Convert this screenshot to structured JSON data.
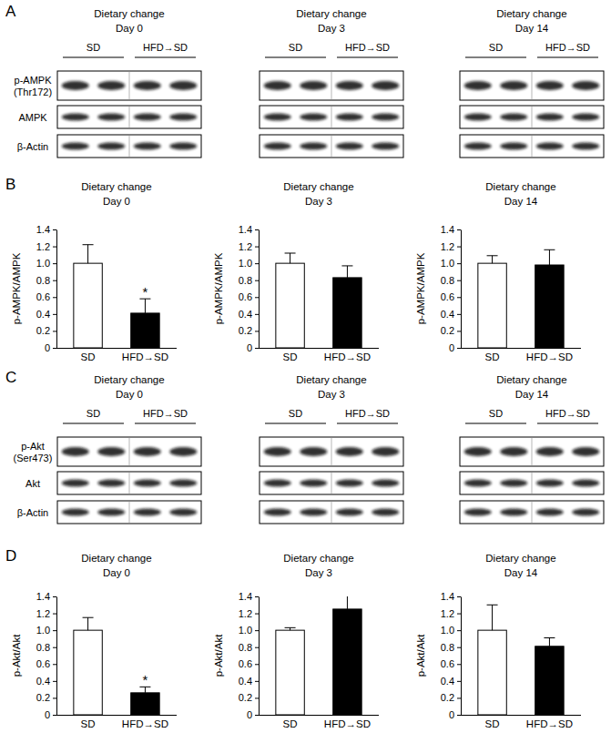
{
  "panel_letters": [
    "A",
    "B",
    "C",
    "D"
  ],
  "blot_panels": [
    {
      "rows": [
        [
          "p-AMPK",
          "(Thr172)"
        ],
        [
          "AMPK"
        ],
        [
          "β-Actin"
        ]
      ],
      "groups": [
        {
          "title": [
            "Dietary change",
            "Day 0"
          ],
          "lanes": [
            "SD",
            "HFD→SD"
          ]
        },
        {
          "title": [
            "Dietary change",
            "Day 3"
          ],
          "lanes": [
            "SD",
            "HFD→SD"
          ]
        },
        {
          "title": [
            "Dietary change",
            "Day 14"
          ],
          "lanes": [
            "SD",
            "HFD→SD"
          ]
        }
      ]
    },
    {
      "rows": [
        [
          "p-Akt",
          "(Ser473)"
        ],
        [
          "Akt"
        ],
        [
          "β-Actin"
        ]
      ],
      "groups": [
        {
          "title": [
            "Dietary change",
            "Day 0"
          ],
          "lanes": [
            "SD",
            "HFD→SD"
          ]
        },
        {
          "title": [
            "Dietary change",
            "Day 3"
          ],
          "lanes": [
            "SD",
            "HFD→SD"
          ]
        },
        {
          "title": [
            "Dietary change",
            "Day 14"
          ],
          "lanes": [
            "SD",
            "HFD→SD"
          ]
        }
      ]
    }
  ],
  "chart_data": [
    {
      "type": "bar",
      "title": [
        "Dietary change",
        "Day 0"
      ],
      "y_label": "p-AMPK/AMPK",
      "categories": [
        "SD",
        "HFD→SD"
      ],
      "values": [
        1.0,
        0.41
      ],
      "errors": [
        0.22,
        0.17
      ],
      "colors": [
        "#ffffff",
        "#000000"
      ],
      "ylim": [
        0,
        1.4
      ],
      "yticks": [
        0,
        0.2,
        0.4,
        0.6,
        0.8,
        {
          "value": 1,
          "label": "1.0"
        },
        1.2,
        1.4
      ],
      "annotations": [
        {
          "text": "*",
          "category": "HFD→SD"
        }
      ]
    },
    {
      "type": "bar",
      "title": [
        "Dietary change",
        "Day 3"
      ],
      "y_label": "p-AMPK/AMPK",
      "categories": [
        "SD",
        "HFD→SD"
      ],
      "values": [
        1.0,
        0.83
      ],
      "errors": [
        0.12,
        0.14
      ],
      "colors": [
        "#ffffff",
        "#000000"
      ],
      "ylim": [
        0,
        1.4
      ],
      "yticks": [
        0,
        0.2,
        0.4,
        0.6,
        0.8,
        {
          "value": 1,
          "label": "1.0"
        },
        1.2,
        1.4
      ]
    },
    {
      "type": "bar",
      "title": [
        "Dietary change",
        "Day 14"
      ],
      "y_label": "p-AMPK/AMPK",
      "categories": [
        "SD",
        "HFD→SD"
      ],
      "values": [
        1.0,
        0.98
      ],
      "errors": [
        0.09,
        0.18
      ],
      "colors": [
        "#ffffff",
        "#000000"
      ],
      "ylim": [
        0,
        1.4
      ],
      "yticks": [
        0,
        0.2,
        0.4,
        0.6,
        0.8,
        {
          "value": 1,
          "label": "1.0"
        },
        1.2,
        1.4
      ]
    },
    {
      "type": "bar",
      "title": [
        "Dietary change",
        "Day 0"
      ],
      "y_label": "p-Akt/Akt",
      "categories": [
        "SD",
        "HFD→SD"
      ],
      "values": [
        1.0,
        0.26
      ],
      "errors": [
        0.15,
        0.07
      ],
      "colors": [
        "#ffffff",
        "#000000"
      ],
      "ylim": [
        0,
        1.4
      ],
      "yticks": [
        0,
        0.2,
        0.4,
        0.6,
        0.8,
        {
          "value": 1,
          "label": "1.0"
        },
        1.2,
        1.4
      ],
      "annotations": [
        {
          "text": "*",
          "category": "HFD→SD"
        }
      ]
    },
    {
      "type": "bar",
      "title": [
        "Dietary change",
        "Day 3"
      ],
      "y_label": "p-Akt/Akt",
      "categories": [
        "SD",
        "HFD→SD"
      ],
      "values": [
        1.0,
        1.25
      ],
      "errors": [
        0.03,
        0.16
      ],
      "colors": [
        "#ffffff",
        "#000000"
      ],
      "ylim": [
        0,
        1.4
      ],
      "yticks": [
        0,
        0.2,
        0.4,
        0.6,
        0.8,
        {
          "value": 1,
          "label": "1.0"
        },
        1.2,
        1.4
      ]
    },
    {
      "type": "bar",
      "title": [
        "Dietary change",
        "Day 14"
      ],
      "y_label": "p-Akt/Akt",
      "categories": [
        "SD",
        "HFD→SD"
      ],
      "values": [
        1.0,
        0.81
      ],
      "errors": [
        0.3,
        0.1
      ],
      "colors": [
        "#ffffff",
        "#000000"
      ],
      "ylim": [
        0,
        1.4
      ],
      "yticks": [
        0,
        0.2,
        0.4,
        0.6,
        0.8,
        {
          "value": 1,
          "label": "1.0"
        },
        1.2,
        1.4
      ]
    }
  ]
}
